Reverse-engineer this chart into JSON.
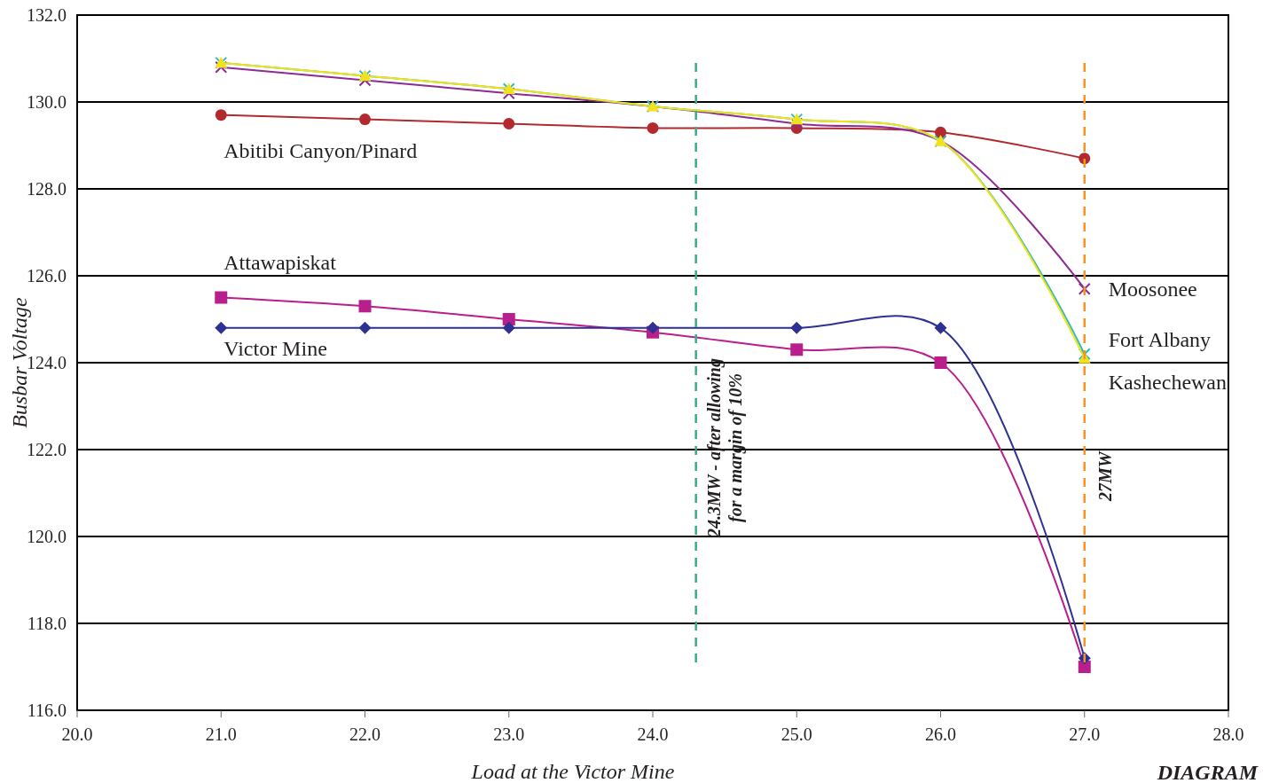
{
  "chart_data": {
    "type": "line",
    "xlabel": "Load at the Victor Mine",
    "ylabel": "Busbar Voltage",
    "x": [
      21,
      22,
      23,
      24,
      25,
      26,
      27
    ],
    "series": [
      {
        "name": "Abitibi Canyon/Pinard",
        "color": "#b22a2e",
        "marker": "circle",
        "values": [
          129.7,
          129.6,
          129.5,
          129.4,
          129.4,
          129.3,
          128.7
        ]
      },
      {
        "name": "Attawapiskat",
        "color": "#b81e8c",
        "marker": "square",
        "values": [
          125.5,
          125.3,
          125.0,
          124.7,
          124.3,
          124.0,
          117.0
        ]
      },
      {
        "name": "Victor Mine",
        "color": "#2e3192",
        "marker": "diamond",
        "values": [
          124.8,
          124.8,
          124.8,
          124.8,
          124.8,
          124.8,
          117.2
        ]
      },
      {
        "name": "Moosonee",
        "color": "#8e2a94",
        "marker": "cross",
        "values": [
          130.8,
          130.5,
          130.2,
          129.9,
          129.5,
          129.1,
          125.7
        ]
      },
      {
        "name": "Fort Albany",
        "color": "#2bbcbc",
        "marker": "cross",
        "values": [
          130.9,
          130.6,
          130.3,
          129.9,
          129.6,
          129.1,
          124.2
        ]
      },
      {
        "name": "Kashechewan",
        "color": "#f2e21a",
        "marker": "triangle",
        "values": [
          130.9,
          130.6,
          130.3,
          129.9,
          129.6,
          129.1,
          124.1
        ]
      }
    ],
    "xlim": [
      20,
      28
    ],
    "ylim": [
      116,
      132
    ],
    "xticks": [
      {
        "value": 20,
        "label": "20.0"
      },
      {
        "value": 21,
        "label": "21.0"
      },
      {
        "value": 22,
        "label": "22.0"
      },
      {
        "value": 23,
        "label": "23.0"
      },
      {
        "value": 24,
        "label": "24.0"
      },
      {
        "value": 25,
        "label": "25.0"
      },
      {
        "value": 26,
        "label": "26.0"
      },
      {
        "value": 27,
        "label": "27.0"
      },
      {
        "value": 28,
        "label": "28.0"
      }
    ],
    "yticks": [
      {
        "value": 116,
        "label": "116.0"
      },
      {
        "value": 118,
        "label": "118.0"
      },
      {
        "value": 120,
        "label": "120.0"
      },
      {
        "value": 122,
        "label": "122.0"
      },
      {
        "value": 124,
        "label": "124.0"
      },
      {
        "value": 126,
        "label": "126.0"
      },
      {
        "value": 128,
        "label": "128.0"
      },
      {
        "value": 130,
        "label": "130.0"
      },
      {
        "value": 132,
        "label": "132.0"
      }
    ],
    "grid": "y",
    "line_style": "solid",
    "ref_lines": [
      {
        "axis": "x",
        "value": 24.3,
        "label": "24.3MW - after allowing\nfor a margin of 10%",
        "color": "#3aaa8c",
        "line_style": "dashed"
      },
      {
        "axis": "x",
        "value": 27,
        "label": "27MW",
        "color": "#f7931e",
        "line_style": "dashed"
      }
    ],
    "annotations": [
      "DIAGRAM"
    ]
  }
}
